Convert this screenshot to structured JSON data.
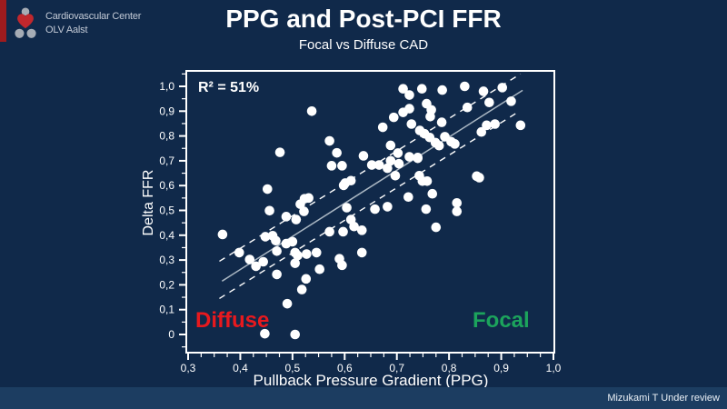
{
  "header": {
    "title": "PPG and Post-PCI FFR",
    "subtitle": "Focal vs Diffuse CAD"
  },
  "logo": {
    "line1": "Cardiovascular Center",
    "line2": "OLV Aalst"
  },
  "footer": {
    "citation": "Mizukami T Under review"
  },
  "colors": {
    "background": "#10294A",
    "footer_bar": "#1C3D61",
    "accent_bar": "#9E1B1E",
    "frame": "#FFFFFF",
    "point": "#FFFFFF",
    "regression": "#A9B6C2",
    "confidence": "#FFFFFF",
    "diffuse": "#E8191E",
    "focal": "#1CA35C",
    "logo_gray": "#A6ACB5",
    "logo_red": "#C1272D"
  },
  "chart_data": {
    "type": "scatter",
    "title": "PPG and Post-PCI FFR",
    "subtitle": "Focal vs Diffuse CAD",
    "xlabel": "Pullback Pressure Gradient (PPG)",
    "ylabel": "Delta FFR",
    "xlim": [
      0.3,
      1.0
    ],
    "ylim": [
      0.0,
      1.0
    ],
    "grid": false,
    "legend": false,
    "x_ticks": [
      0.3,
      0.4,
      0.5,
      0.6,
      0.7,
      0.8,
      0.9,
      1.0
    ],
    "x_tick_labels": [
      "0,3",
      "0,4",
      "0,5",
      "0,6",
      "0,7",
      "0,8",
      "0,9",
      "1,0"
    ],
    "y_ticks": [
      0,
      0.1,
      0.2,
      0.3,
      0.4,
      0.5,
      0.6,
      0.7,
      0.8,
      0.9,
      1.0
    ],
    "y_tick_labels": [
      "0",
      "0,1",
      "0,2",
      "0,3",
      "0,4",
      "0,5",
      "0,6",
      "0,7",
      "0,8",
      "0,9",
      "1,0"
    ],
    "x_minor_step": 0.025,
    "y_minor_step": 0.05,
    "annotations": [
      {
        "id": "r2",
        "text": "R² = 51%",
        "color": "#FFFFFF"
      },
      {
        "id": "diffuse",
        "text": "Diffuse",
        "color": "#E8191E"
      },
      {
        "id": "focal",
        "text": "Focal",
        "color": "#1CA35C"
      }
    ],
    "regression": {
      "solid": [
        [
          0.365,
          0.215
        ],
        [
          0.941,
          0.984
        ]
      ],
      "dashed_upper": [
        [
          0.36,
          0.295
        ],
        [
          0.937,
          1.05
        ]
      ],
      "dashed_lower": [
        [
          0.36,
          0.145
        ],
        [
          0.935,
          0.9
        ]
      ]
    },
    "points": [
      [
        0.537,
        0.9
      ],
      [
        0.712,
        0.99
      ],
      [
        0.724,
        0.965
      ],
      [
        0.748,
        0.99
      ],
      [
        0.787,
        0.985
      ],
      [
        0.83,
        1.0
      ],
      [
        0.866,
        0.98
      ],
      [
        0.902,
        0.995
      ],
      [
        0.877,
        0.935
      ],
      [
        0.919,
        0.94
      ],
      [
        0.757,
        0.93
      ],
      [
        0.835,
        0.915
      ],
      [
        0.694,
        0.875
      ],
      [
        0.712,
        0.895
      ],
      [
        0.724,
        0.91
      ],
      [
        0.766,
        0.905
      ],
      [
        0.764,
        0.878
      ],
      [
        0.786,
        0.855
      ],
      [
        0.728,
        0.848
      ],
      [
        0.888,
        0.848
      ],
      [
        0.937,
        0.843
      ],
      [
        0.872,
        0.843
      ],
      [
        0.673,
        0.835
      ],
      [
        0.744,
        0.822
      ],
      [
        0.753,
        0.809
      ],
      [
        0.763,
        0.794
      ],
      [
        0.774,
        0.773
      ],
      [
        0.781,
        0.761
      ],
      [
        0.792,
        0.797
      ],
      [
        0.804,
        0.777
      ],
      [
        0.811,
        0.768
      ],
      [
        0.862,
        0.816
      ],
      [
        0.571,
        0.78
      ],
      [
        0.585,
        0.732
      ],
      [
        0.476,
        0.734
      ],
      [
        0.724,
        0.716
      ],
      [
        0.74,
        0.71
      ],
      [
        0.704,
        0.688
      ],
      [
        0.688,
        0.7
      ],
      [
        0.688,
        0.762
      ],
      [
        0.702,
        0.731
      ],
      [
        0.652,
        0.683
      ],
      [
        0.666,
        0.683
      ],
      [
        0.682,
        0.67
      ],
      [
        0.697,
        0.64
      ],
      [
        0.636,
        0.72
      ],
      [
        0.575,
        0.68
      ],
      [
        0.595,
        0.68
      ],
      [
        0.743,
        0.64
      ],
      [
        0.749,
        0.618
      ],
      [
        0.758,
        0.618
      ],
      [
        0.74,
        0.713
      ],
      [
        0.722,
        0.554
      ],
      [
        0.768,
        0.567
      ],
      [
        0.682,
        0.515
      ],
      [
        0.658,
        0.505
      ],
      [
        0.756,
        0.505
      ],
      [
        0.815,
        0.53
      ],
      [
        0.601,
        0.61
      ],
      [
        0.612,
        0.62
      ],
      [
        0.598,
        0.601
      ],
      [
        0.452,
        0.586
      ],
      [
        0.531,
        0.55
      ],
      [
        0.853,
        0.638
      ],
      [
        0.858,
        0.632
      ],
      [
        0.815,
        0.496
      ],
      [
        0.775,
        0.432
      ],
      [
        0.604,
        0.511
      ],
      [
        0.515,
        0.525
      ],
      [
        0.523,
        0.547
      ],
      [
        0.507,
        0.463
      ],
      [
        0.522,
        0.496
      ],
      [
        0.488,
        0.475
      ],
      [
        0.456,
        0.499
      ],
      [
        0.612,
        0.463
      ],
      [
        0.618,
        0.435
      ],
      [
        0.633,
        0.42
      ],
      [
        0.366,
        0.403
      ],
      [
        0.448,
        0.394
      ],
      [
        0.462,
        0.398
      ],
      [
        0.468,
        0.378
      ],
      [
        0.488,
        0.366
      ],
      [
        0.5,
        0.374
      ],
      [
        0.597,
        0.414
      ],
      [
        0.571,
        0.414
      ],
      [
        0.398,
        0.33
      ],
      [
        0.418,
        0.302
      ],
      [
        0.43,
        0.275
      ],
      [
        0.444,
        0.293
      ],
      [
        0.47,
        0.336
      ],
      [
        0.505,
        0.33
      ],
      [
        0.51,
        0.318
      ],
      [
        0.527,
        0.324
      ],
      [
        0.546,
        0.33
      ],
      [
        0.505,
        0.287
      ],
      [
        0.59,
        0.305
      ],
      [
        0.595,
        0.279
      ],
      [
        0.633,
        0.33
      ],
      [
        0.552,
        0.263
      ],
      [
        0.47,
        0.242
      ],
      [
        0.526,
        0.224
      ],
      [
        0.518,
        0.181
      ],
      [
        0.49,
        0.124
      ],
      [
        0.447,
        0.003
      ],
      [
        0.505,
        0.0
      ]
    ]
  }
}
